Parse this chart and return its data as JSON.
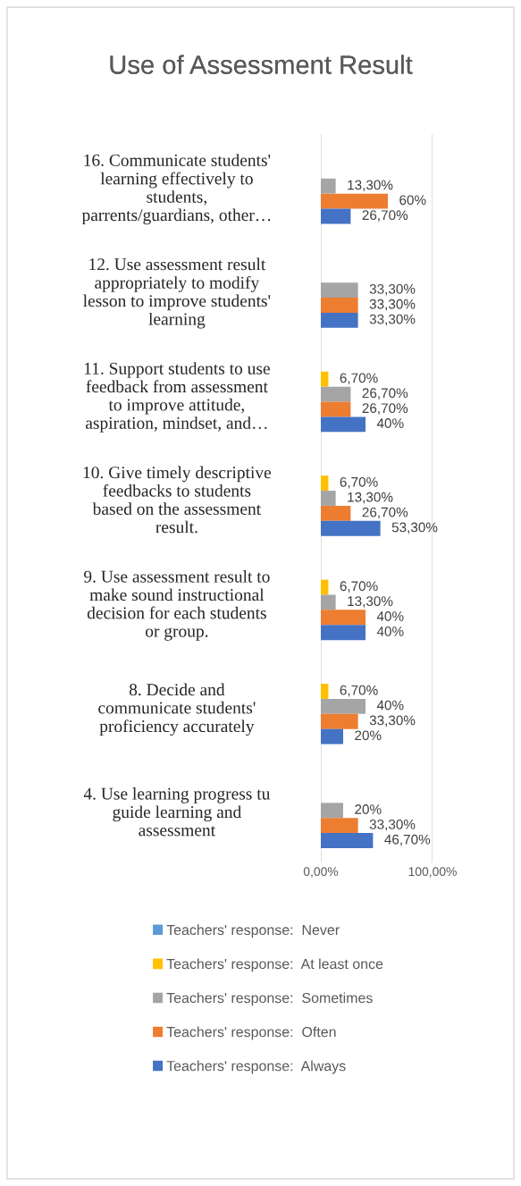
{
  "chart_data": {
    "type": "bar",
    "orientation": "horizontal",
    "title": "Use of Assessment Result",
    "categories": [
      "16. Communicate students'\nlearning effectively to\nstudents,\nparrents/guardians, other…",
      "12. Use assessment result\nappropriately to modify\nlesson to improve students'\nlearning",
      "11. Support students to use\nfeedback from assessment\nto improve attitude,\naspiration, mindset, and…",
      "10. Give timely descriptive\nfeedbacks to students\nbased on the assessment\nresult.",
      "9. Use assessment result to\nmake sound instructional\ndecision for each students\nor group.",
      "8. Decide and\ncommunicate students'\nproficiency accurately",
      "4. Use learning progress tu\nguide learning and\nassessment"
    ],
    "series": [
      {
        "name": "Teachers' response:  Never",
        "color": "#5b9bd5",
        "values": [
          null,
          null,
          null,
          null,
          null,
          null,
          null
        ],
        "value_labels": [
          null,
          null,
          null,
          null,
          null,
          null,
          null
        ]
      },
      {
        "name": "Teachers' response:  At least once",
        "color": "#ffc000",
        "values": [
          null,
          null,
          6.7,
          6.7,
          6.7,
          6.7,
          null
        ],
        "value_labels": [
          null,
          null,
          "6,70%",
          "6,70%",
          "6,70%",
          "6,70%",
          null
        ]
      },
      {
        "name": "Teachers' response:  Sometimes",
        "color": "#a5a5a5",
        "values": [
          13.3,
          33.3,
          26.7,
          13.3,
          13.3,
          40,
          20
        ],
        "value_labels": [
          "13,30%",
          "33,30%",
          "26,70%",
          "13,30%",
          "13,30%",
          "40%",
          "20%"
        ]
      },
      {
        "name": "Teachers' response:  Often",
        "color": "#ed7d31",
        "values": [
          60,
          33.3,
          26.7,
          26.7,
          40,
          33.3,
          33.3
        ],
        "value_labels": [
          "60%",
          "33,30%",
          "26,70%",
          "26,70%",
          "40%",
          "33,30%",
          "33,30%"
        ]
      },
      {
        "name": "Teachers' response:  Always",
        "color": "#4472c4",
        "values": [
          26.7,
          33.3,
          40,
          53.3,
          40,
          20,
          46.7
        ],
        "value_labels": [
          "26,70%",
          "33,30%",
          "40%",
          "53,30%",
          "40%",
          "20%",
          "46,70%"
        ]
      }
    ],
    "xlim": [
      0,
      100
    ],
    "xticks": [
      {
        "value": 0,
        "label": "0,00%"
      },
      {
        "value": 100,
        "label": "100,00%"
      }
    ],
    "grid": "x",
    "legend": "bottom"
  }
}
